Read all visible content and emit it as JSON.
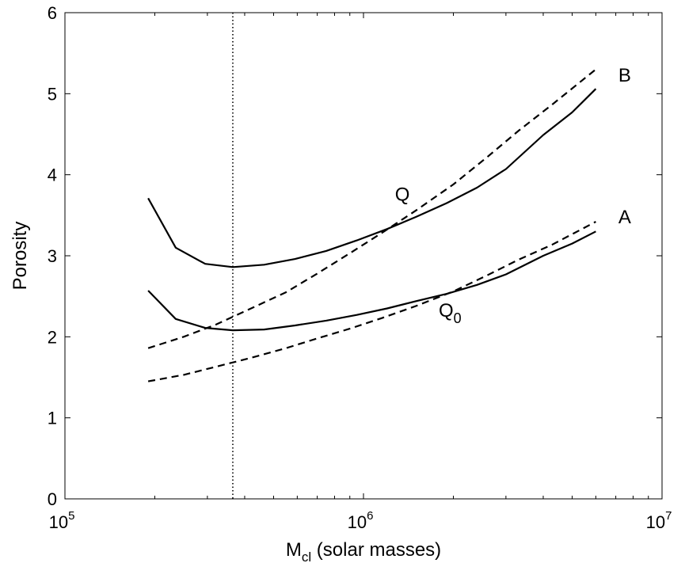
{
  "chart_data": {
    "type": "line",
    "xlabel": {
      "main": "M",
      "sub": "cl",
      "rest": " (solar masses)"
    },
    "ylabel": "Porosity",
    "xscale": "log",
    "xlim": [
      100000,
      10000000
    ],
    "ylim": [
      0,
      6
    ],
    "xticks": [
      {
        "value": 100000,
        "base": "10",
        "exp": "5"
      },
      {
        "value": 1000000,
        "base": "10",
        "exp": "6"
      },
      {
        "value": 10000000,
        "base": "10",
        "exp": "7"
      }
    ],
    "yticks": [
      0,
      1,
      2,
      3,
      4,
      5,
      6
    ],
    "grid": false,
    "vline": {
      "x": 365000,
      "style": "dotted"
    },
    "series": [
      {
        "style": "solid",
        "x": [
          190000,
          235000,
          295000,
          365000,
          465000,
          590000,
          750000,
          950000,
          1200000,
          1500000,
          1900000,
          2400000,
          3000000,
          4000000,
          5000000,
          6000000
        ],
        "y": [
          3.71,
          3.1,
          2.9,
          2.86,
          2.89,
          2.96,
          3.06,
          3.19,
          3.33,
          3.48,
          3.65,
          3.84,
          4.07,
          4.49,
          4.77,
          5.06
        ]
      },
      {
        "style": "solid",
        "x": [
          190000,
          235000,
          295000,
          365000,
          465000,
          590000,
          750000,
          950000,
          1200000,
          1500000,
          1900000,
          2400000,
          3000000,
          4000000,
          5000000,
          6000000
        ],
        "y": [
          2.57,
          2.22,
          2.11,
          2.08,
          2.09,
          2.14,
          2.2,
          2.27,
          2.35,
          2.44,
          2.53,
          2.64,
          2.77,
          3.0,
          3.15,
          3.3
        ]
      },
      {
        "style": "dashed",
        "x": [
          190000,
          250000,
          320000,
          420000,
          550000,
          700000,
          900000,
          1150000,
          1500000,
          2000000,
          2600000,
          3300000,
          4300000,
          6000000
        ],
        "y": [
          1.86,
          2.0,
          2.15,
          2.35,
          2.55,
          2.78,
          3.03,
          3.28,
          3.56,
          3.88,
          4.22,
          4.54,
          4.87,
          5.3
        ]
      },
      {
        "style": "dashed",
        "x": [
          190000,
          250000,
          320000,
          420000,
          550000,
          700000,
          900000,
          1150000,
          1500000,
          2000000,
          2600000,
          3300000,
          4300000,
          6000000
        ],
        "y": [
          1.45,
          1.53,
          1.63,
          1.74,
          1.86,
          1.98,
          2.1,
          2.23,
          2.38,
          2.56,
          2.76,
          2.95,
          3.14,
          3.42
        ]
      }
    ],
    "annotations": [
      {
        "text": "B",
        "sub": "",
        "x": 7500000,
        "y": 5.15
      },
      {
        "text": "A",
        "sub": "",
        "x": 7500000,
        "y": 3.4
      },
      {
        "text": "Q",
        "sub": "",
        "x": 1350000,
        "y": 3.68
      },
      {
        "text": "Q",
        "sub": "0",
        "x": 1950000,
        "y": 2.25
      }
    ]
  }
}
